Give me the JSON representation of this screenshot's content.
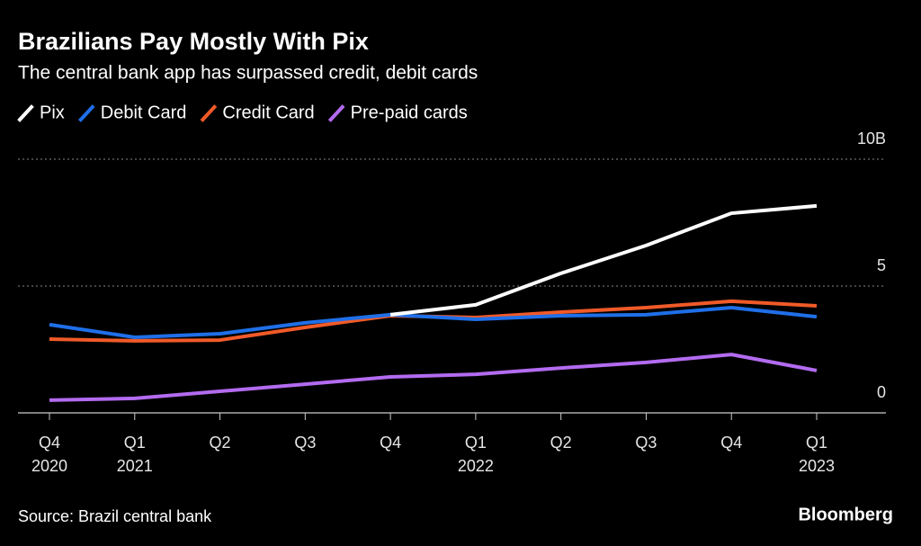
{
  "chart_data": {
    "type": "line",
    "title": "Brazilians Pay Mostly With Pix",
    "subtitle": "The central bank app has surpassed credit, debit cards",
    "source": "Source: Brazil central bank",
    "brand": "Bloomberg",
    "categories": [
      "Q4",
      "Q1",
      "Q2",
      "Q3",
      "Q4",
      "Q1",
      "Q2",
      "Q3",
      "Q4",
      "Q1"
    ],
    "category_years": [
      "2020",
      "2021",
      null,
      null,
      null,
      "2022",
      null,
      null,
      null,
      "2023"
    ],
    "ylim": [
      0,
      10
    ],
    "yticks": [
      0,
      5,
      {
        "value": 10,
        "label": "10B"
      }
    ],
    "grid": true,
    "series": [
      {
        "name": "Pix",
        "color": "#ffffff",
        "values": [
          null,
          null,
          null,
          null,
          3.87,
          4.26,
          5.5,
          6.6,
          7.87,
          8.16
        ]
      },
      {
        "name": "Debit Card",
        "color": "#1f6fe8",
        "values": [
          3.48,
          2.98,
          3.12,
          3.55,
          3.87,
          3.69,
          3.83,
          3.87,
          4.15,
          3.79
        ]
      },
      {
        "name": "Credit Card",
        "color": "#f05a28",
        "values": [
          2.91,
          2.84,
          2.87,
          3.37,
          3.83,
          3.76,
          3.97,
          4.15,
          4.4,
          4.22
        ]
      },
      {
        "name": "Pre-paid cards",
        "color": "#b36bf0",
        "values": [
          0.5,
          0.57,
          0.85,
          1.13,
          1.42,
          1.52,
          1.77,
          1.99,
          2.3,
          1.67
        ]
      }
    ]
  }
}
